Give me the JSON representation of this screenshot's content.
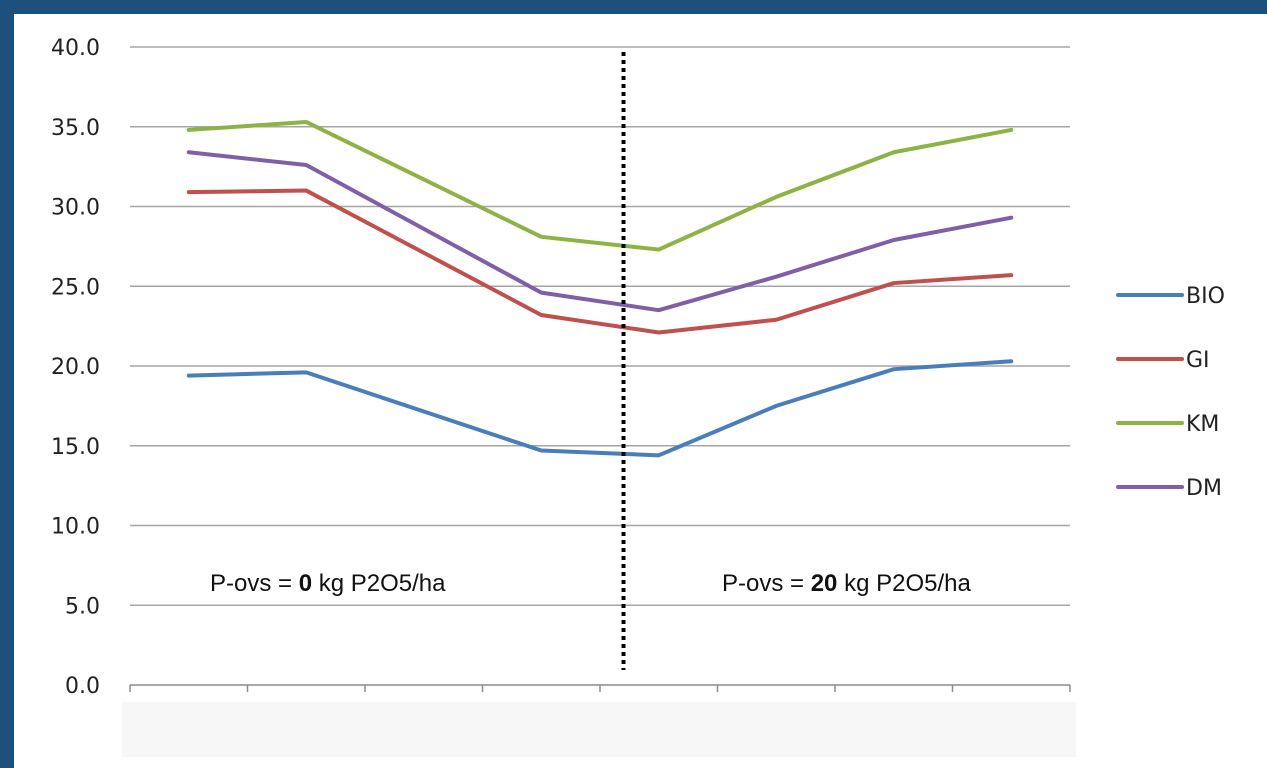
{
  "chart_data": {
    "type": "line",
    "ylim": [
      0,
      40
    ],
    "yticks": [
      "0.0",
      "5.0",
      "10.0",
      "15.0",
      "20.0",
      "25.0",
      "30.0",
      "35.0",
      "40.0"
    ],
    "x": [
      1,
      2,
      4,
      5,
      6,
      7,
      8
    ],
    "xlim": [
      0.5,
      8.5
    ],
    "series": [
      {
        "name": "BIO",
        "color": "#4a7ebb",
        "values": [
          19.4,
          19.6,
          14.7,
          14.4,
          17.5,
          19.8,
          20.3
        ]
      },
      {
        "name": "GI",
        "color": "#c0504d",
        "values": [
          30.9,
          31.0,
          23.2,
          22.1,
          22.9,
          25.2,
          25.7
        ]
      },
      {
        "name": "KM",
        "color": "#8db345",
        "values": [
          34.8,
          35.3,
          28.1,
          27.3,
          30.6,
          33.4,
          34.8
        ]
      },
      {
        "name": "DM",
        "color": "#7f5fa6",
        "values": [
          33.4,
          32.6,
          24.6,
          23.5,
          25.6,
          27.9,
          29.3
        ]
      }
    ],
    "divider_x": 4.7,
    "annotations": [
      {
        "prefix": "P-ovs = ",
        "bold": "0",
        "suffix": " kg P2O5/ha"
      },
      {
        "prefix": "P-ovs = ",
        "bold": "20",
        "suffix": " kg P2O5/ha"
      }
    ],
    "grid": true,
    "legend_position": "right"
  }
}
